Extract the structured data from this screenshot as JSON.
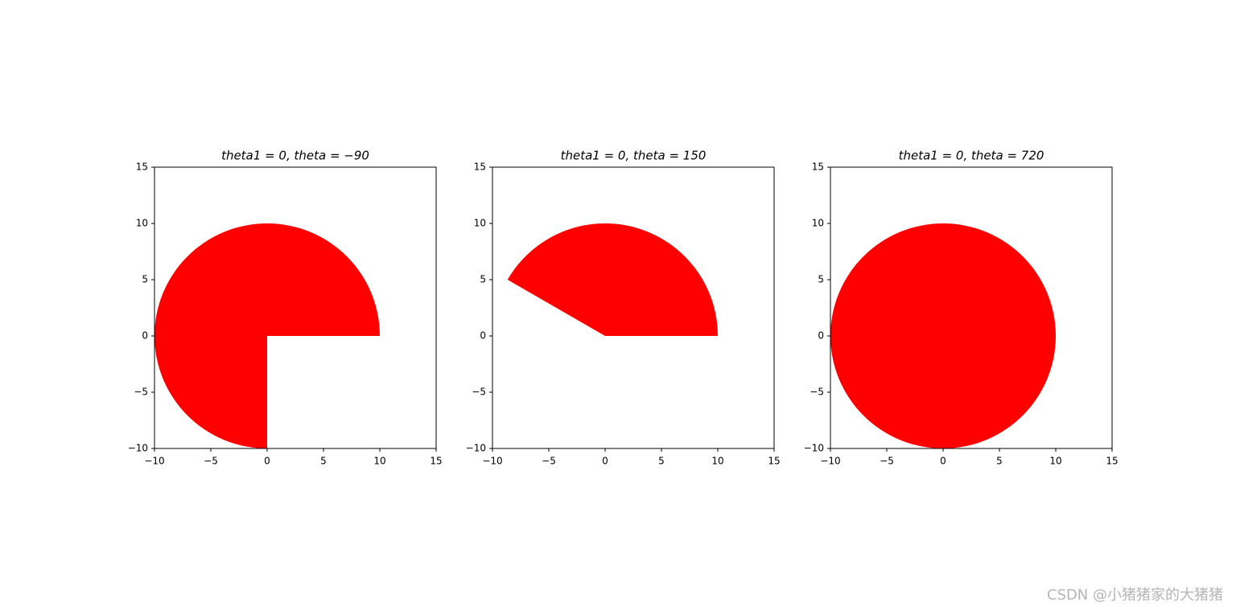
{
  "chart_data": [
    {
      "type": "wedge",
      "title": "theta1 = 0, theta = −90",
      "center": [
        0,
        0
      ],
      "radius": 10,
      "theta1": 0,
      "theta2": -90,
      "color": "#ff0000",
      "xlim": [
        -10,
        15
      ],
      "ylim": [
        -10,
        15
      ],
      "xticks": [
        {
          "value": -10,
          "label": "−10"
        },
        {
          "value": -5,
          "label": "−5"
        },
        0,
        5,
        10,
        15
      ],
      "yticks": [
        {
          "value": -10,
          "label": "−10"
        },
        {
          "value": -5,
          "label": "−5"
        },
        0,
        5,
        10,
        15
      ]
    },
    {
      "type": "wedge",
      "title": "theta1 = 0, theta = 150",
      "center": [
        0,
        0
      ],
      "radius": 10,
      "theta1": 0,
      "theta2": 150,
      "color": "#ff0000",
      "xlim": [
        -10,
        15
      ],
      "ylim": [
        -10,
        15
      ],
      "xticks": [
        {
          "value": -10,
          "label": "−10"
        },
        {
          "value": -5,
          "label": "−5"
        },
        0,
        5,
        10,
        15
      ],
      "yticks": [
        {
          "value": -10,
          "label": "−10"
        },
        {
          "value": -5,
          "label": "−5"
        },
        0,
        5,
        10,
        15
      ]
    },
    {
      "type": "wedge",
      "title": "theta1 = 0, theta = 720",
      "center": [
        0,
        0
      ],
      "radius": 10,
      "theta1": 0,
      "theta2": 720,
      "color": "#ff0000",
      "xlim": [
        -10,
        15
      ],
      "ylim": [
        -10,
        15
      ],
      "xticks": [
        {
          "value": -10,
          "label": "−10"
        },
        {
          "value": -5,
          "label": "−5"
        },
        0,
        5,
        10,
        15
      ],
      "yticks": [
        {
          "value": -10,
          "label": "−10"
        },
        {
          "value": -5,
          "label": "−5"
        },
        0,
        5,
        10,
        15
      ]
    }
  ],
  "watermark": "CSDN @小猪猪家的大猪猪"
}
